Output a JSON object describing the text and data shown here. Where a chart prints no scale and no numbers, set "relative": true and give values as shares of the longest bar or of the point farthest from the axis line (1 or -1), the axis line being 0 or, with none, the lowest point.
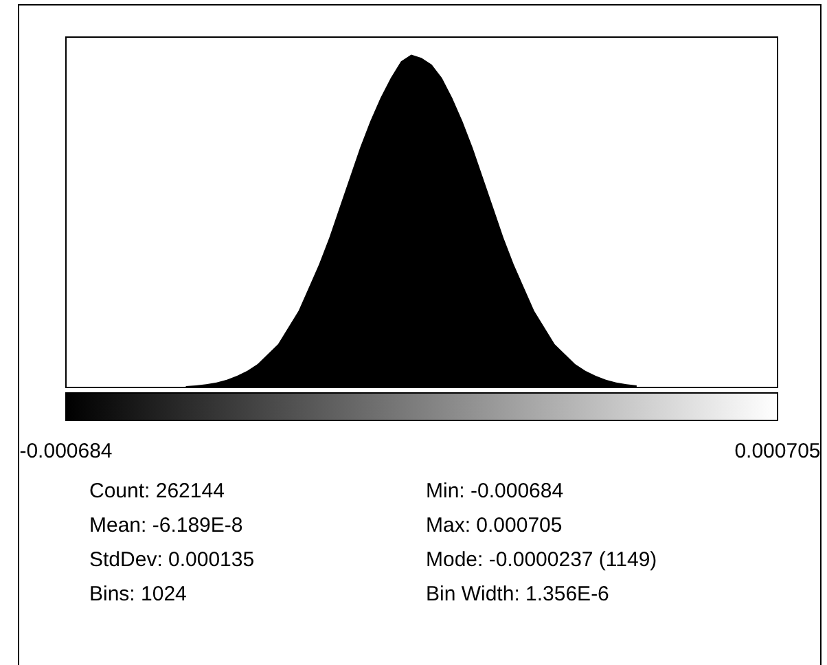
{
  "chart_data": {
    "type": "area",
    "relative": true,
    "color": "#000000",
    "x": [
      -0.00045,
      -0.00043,
      -0.00041,
      -0.00039,
      -0.00037,
      -0.00035,
      -0.00033,
      -0.00031,
      -0.00029,
      -0.00027,
      -0.00025,
      -0.00023,
      -0.00021,
      -0.00019,
      -0.00017,
      -0.00015,
      -0.00013,
      -0.00011,
      -9e-05,
      -7e-05,
      -5e-05,
      -3e-05,
      -1e-05,
      1e-05,
      3e-05,
      5e-05,
      7e-05,
      9e-05,
      0.00011,
      0.00013,
      0.00015,
      0.00017,
      0.00019,
      0.00021,
      0.00023,
      0.00025,
      0.00027,
      0.00029,
      0.00031,
      0.00033,
      0.00035,
      0.00037,
      0.00039,
      0.00041,
      0.00043
    ],
    "values": [
      0.004,
      0.006,
      0.01,
      0.015,
      0.023,
      0.035,
      0.05,
      0.07,
      0.1,
      0.13,
      0.18,
      0.23,
      0.3,
      0.37,
      0.45,
      0.54,
      0.63,
      0.72,
      0.8,
      0.87,
      0.93,
      0.98,
      1,
      0.99,
      0.97,
      0.93,
      0.87,
      0.8,
      0.72,
      0.63,
      0.54,
      0.45,
      0.37,
      0.3,
      0.23,
      0.18,
      0.13,
      0.1,
      0.07,
      0.05,
      0.035,
      0.023,
      0.015,
      0.01,
      0.006
    ],
    "xlim": [
      -0.000684,
      0.000705
    ],
    "xticks": [
      -0.000684,
      0.000705
    ],
    "annotations": [
      "Count: 262144",
      "Mean: -6.189E-8",
      "StdDev: 0.000135",
      "Bins: 1024",
      "Min: -0.000684",
      "Max: 0.000705",
      "Mode: -0.0000237 (1149)",
      "Bin Width: 1.356E-6"
    ]
  }
}
